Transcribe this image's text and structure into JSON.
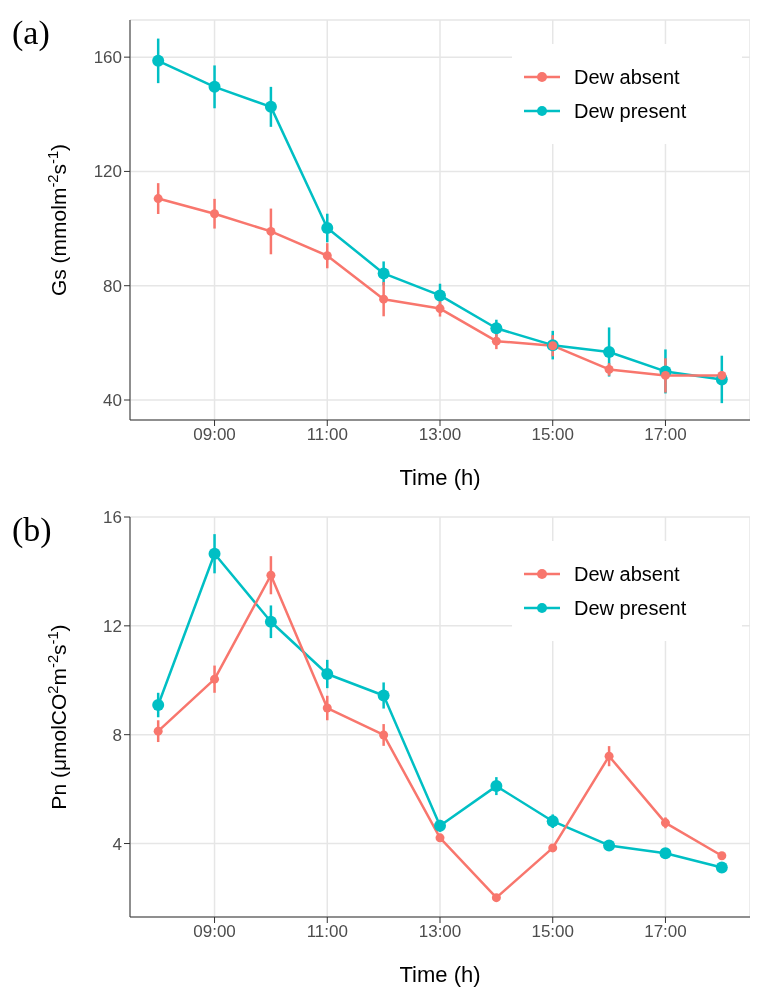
{
  "chart_data": [
    {
      "type": "line",
      "title": "(a)",
      "xlabel": "Time (h)",
      "ylabel": "Gs (mmolm$^{-2}$s$^{-1}$)",
      "x": [
        8,
        9,
        10,
        11,
        12,
        13,
        14,
        15,
        16,
        17,
        18
      ],
      "xlim": [
        7.5,
        18.5
      ],
      "xticks": [
        {
          "value": 9,
          "label": "09:00"
        },
        {
          "value": 11,
          "label": "11:00"
        },
        {
          "value": 13,
          "label": "13:00"
        },
        {
          "value": 15,
          "label": "15:00"
        },
        {
          "value": 17,
          "label": "17:00"
        }
      ],
      "ylim": [
        33,
        173
      ],
      "yticks": [
        40,
        80,
        120,
        160
      ],
      "series": [
        {
          "name": "Dew absent",
          "color": "#f8766d",
          "values": [
            110.5,
            105.2,
            99,
            90.5,
            75.3,
            72,
            60.6,
            59,
            50.7,
            48.6,
            48.6
          ],
          "errors": [
            5.4,
            5.2,
            8,
            4.4,
            6,
            2.8,
            2.8,
            3.7,
            2.2,
            6,
            1.5
          ]
        },
        {
          "name": "Dew present",
          "color": "#00bfc4",
          "values": [
            158.7,
            149.6,
            142.6,
            100.2,
            84.3,
            76.6,
            65.1,
            59.2,
            56.8,
            50,
            47.2
          ],
          "errors": [
            7.8,
            7.5,
            7,
            5,
            4.2,
            4.1,
            3,
            5,
            8.6,
            7.7,
            8.3
          ]
        }
      ],
      "grid": true,
      "legend": "top right",
      "marker": "circle",
      "line_style": "solid"
    },
    {
      "type": "line",
      "title": "(b)",
      "xlabel": "Time (h)",
      "ylabel": "Pn (μmolCO$^{2}$m$^{-2}$s$^{-1}$)",
      "x": [
        8,
        9,
        10,
        11,
        12,
        13,
        14,
        15,
        16,
        17,
        18
      ],
      "xlim": [
        7.5,
        18.5
      ],
      "xticks": [
        {
          "value": 9,
          "label": "09:00"
        },
        {
          "value": 11,
          "label": "11:00"
        },
        {
          "value": 13,
          "label": "13:00"
        },
        {
          "value": 15,
          "label": "15:00"
        },
        {
          "value": 17,
          "label": "17:00"
        }
      ],
      "ylim": [
        1.3,
        16
      ],
      "yticks": [
        4,
        8,
        12,
        16
      ],
      "series": [
        {
          "name": "Dew absent",
          "color": "#f8766d",
          "values": [
            8.13,
            10.04,
            13.86,
            8.98,
            7.99,
            4.21,
            2.01,
            3.84,
            7.21,
            4.76,
            3.55
          ],
          "errors": [
            0.4,
            0.5,
            0.7,
            0.45,
            0.4,
            0.1,
            0.05,
            0.1,
            0.37,
            0.2,
            0.1
          ]
        },
        {
          "name": "Dew present",
          "color": "#00bfc4",
          "values": [
            9.09,
            14.65,
            12.15,
            10.23,
            9.44,
            4.65,
            6.11,
            4.82,
            3.93,
            3.64,
            3.12
          ],
          "errors": [
            0.45,
            0.72,
            0.6,
            0.52,
            0.48,
            0.22,
            0.33,
            0.25,
            0.1,
            0.1,
            0.1
          ]
        }
      ],
      "grid": true,
      "legend": "top right",
      "marker": "circle",
      "line_style": "solid"
    }
  ]
}
